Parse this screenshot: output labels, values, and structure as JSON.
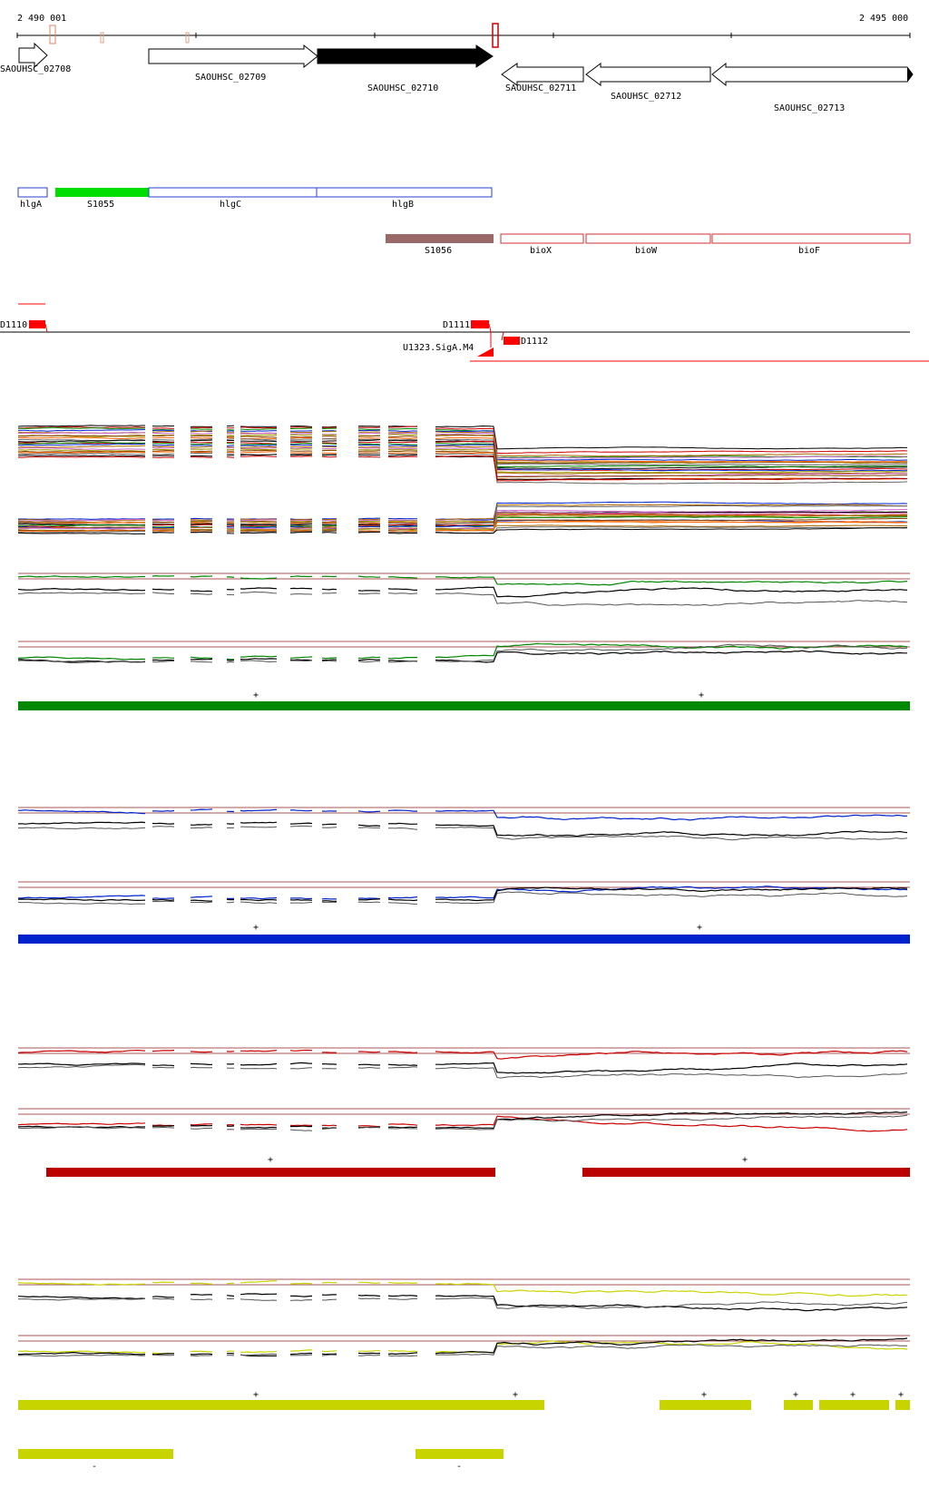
{
  "coordinates": {
    "start": "2 490 001",
    "end": "2 495 000"
  },
  "genes": [
    {
      "label": "SAOUHSC_02708",
      "strand": "+",
      "fill": "#ffffff"
    },
    {
      "label": "SAOUHSC_02709",
      "strand": "+",
      "fill": "#ffffff"
    },
    {
      "label": "SAOUHSC_02710",
      "strand": "+",
      "fill": "#000000"
    },
    {
      "label": "SAOUHSC_02711",
      "strand": "-",
      "fill": "#ffffff"
    },
    {
      "label": "SAOUHSC_02712",
      "strand": "-",
      "fill": "#ffffff"
    },
    {
      "label": "SAOUHSC_02713",
      "strand": "-",
      "fill": "#ffffff"
    }
  ],
  "features_row1": [
    {
      "label": "hlgA",
      "color": "#2b3fd0",
      "filled": false
    },
    {
      "label": "S1055",
      "color": "#00dd00",
      "filled": true
    },
    {
      "label": "hlgC",
      "color": "#2b3fd0",
      "filled": false
    },
    {
      "label": "hlgB",
      "color": "#2b3fd0",
      "filled": false
    }
  ],
  "features_row2": [
    {
      "label": "S1056",
      "color": "#9a6a6a",
      "filled": true
    },
    {
      "label": "bioX",
      "color": "#d03030",
      "filled": false
    },
    {
      "label": "bioW",
      "color": "#d03030",
      "filled": false
    },
    {
      "label": "bioF",
      "color": "#d03030",
      "filled": false
    }
  ],
  "promoters": {
    "labels": [
      "D1110",
      "D1111",
      "D1112",
      "U1323.SigA.M4"
    ],
    "color": "#ff0000"
  },
  "conditions": [
    {
      "name": "green",
      "color": "#008800",
      "bar_color": "#008800",
      "strand_marks": [
        "+",
        "+"
      ]
    },
    {
      "name": "blue",
      "color": "#0022cc",
      "bar_color": "#0022cc",
      "strand_marks": [
        "+",
        "+"
      ]
    },
    {
      "name": "red",
      "color": "#cc0000",
      "bar_color": "#bb0000",
      "strand_marks": [
        "+",
        "+"
      ]
    },
    {
      "name": "yellow",
      "color": "#c8d400",
      "bar_color": "#c8d400",
      "strand_marks": [
        "+",
        "+",
        "+",
        "+",
        "+",
        "+"
      ],
      "minus_marks": [
        "-",
        "-"
      ]
    }
  ]
}
